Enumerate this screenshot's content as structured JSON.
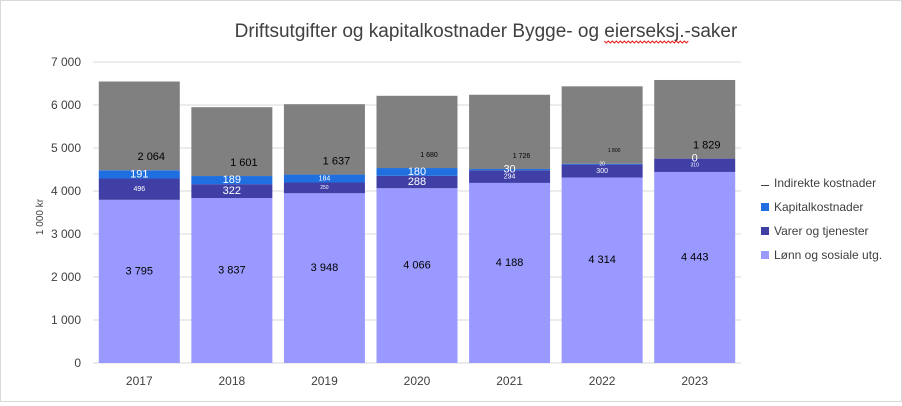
{
  "chart_data": {
    "type": "bar",
    "stacked": true,
    "title": "Driftsutgifter og kapitalkostnader Bygge- og eierseksj.-saker",
    "title_underlined_word": "eierseksj.",
    "ylabel": "1 000 kr",
    "xlabel": "",
    "ylim": [
      0,
      7000
    ],
    "yticks": [
      0,
      1000,
      2000,
      3000,
      4000,
      5000,
      6000,
      7000
    ],
    "ytick_labels": [
      "0",
      "1 000",
      "2 000",
      "3 000",
      "4 000",
      "5 000",
      "6 000",
      "7 000"
    ],
    "grid": true,
    "legend_position": "right",
    "categories": [
      "2017",
      "2018",
      "2019",
      "2020",
      "2021",
      "2022",
      "2023"
    ],
    "series": [
      {
        "name": "Lønn og sosiale utg.",
        "color": "#9999ff",
        "values": [
          3795,
          3837,
          3948,
          4066,
          4188,
          4314,
          4443
        ],
        "labels": [
          "3 795",
          "3 837",
          "3 948",
          "4 066",
          "4 188",
          "4 314",
          "4 443"
        ],
        "label_sizes": [
          "normal",
          "normal",
          "normal",
          "normal",
          "normal",
          "normal",
          "normal"
        ]
      },
      {
        "name": "Varer og tjenester",
        "color": "#3f3fa6",
        "values": [
          496,
          322,
          250,
          288,
          294,
          300,
          310
        ],
        "labels": [
          "496",
          "322",
          "250",
          "288",
          "294",
          "300",
          "310"
        ],
        "label_sizes": [
          "small",
          "normal",
          "tiny",
          "normal",
          "small",
          "small",
          "tiny"
        ]
      },
      {
        "name": "Kapitalkostnader",
        "color": "#1f6fe0",
        "values": [
          191,
          189,
          184,
          180,
          30,
          20,
          0
        ],
        "labels": [
          "191",
          "189",
          "184",
          "180",
          "30",
          "20",
          "0"
        ],
        "label_sizes": [
          "normal",
          "normal",
          "small",
          "normal",
          "normal",
          "tiny",
          "normal"
        ]
      },
      {
        "name": "Indirekte kostnader",
        "color": "#808080",
        "values": [
          2064,
          1601,
          1637,
          1680,
          1726,
          1800,
          1829
        ],
        "labels": [
          "2 064",
          "1 601",
          "1 637",
          "1 680",
          "1 726",
          "1 800",
          "1 829"
        ],
        "label_sizes": [
          "normal",
          "normal",
          "normal",
          "small",
          "small",
          "tiny",
          "normal"
        ]
      }
    ],
    "legend_order": [
      "Indirekte kostnader",
      "Kapitalkostnader",
      "Varer og tjenester",
      "Lønn og sosiale utg."
    ]
  }
}
